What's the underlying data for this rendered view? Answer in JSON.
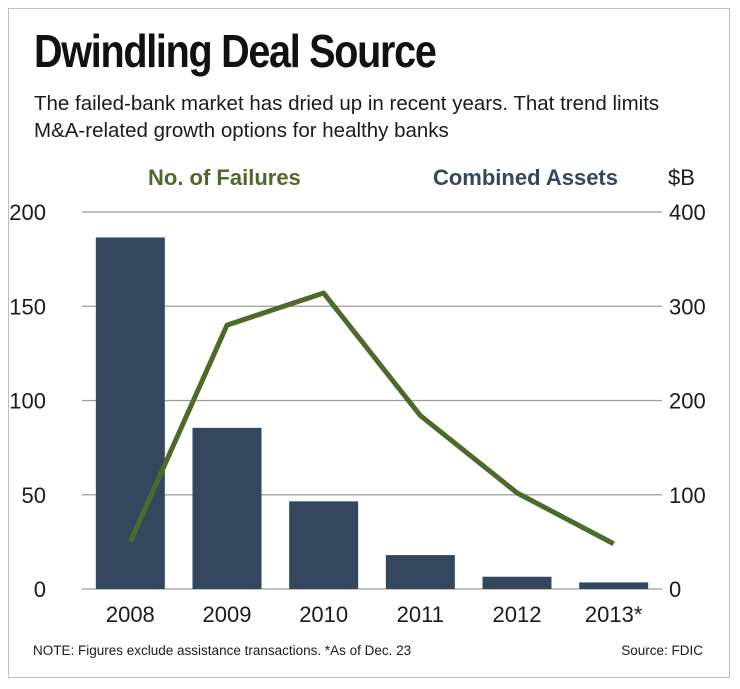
{
  "header": {
    "title": "Dwindling Deal Source",
    "subtitle": "The failed-bank market has dried up in recent years. That trend limits M&A-related growth options for healthy banks"
  },
  "footer": {
    "note": "NOTE: Figures exclude assistance transactions. *As of Dec. 23",
    "source": "Source: FDIC"
  },
  "colors": {
    "bars": "#34475f",
    "line": "#4d6a2a",
    "grid": "#9a9a9a",
    "text": "#1a1a1a"
  },
  "chart_data": {
    "type": "bar",
    "title": "Dwindling Deal Source",
    "categories": [
      "2008",
      "2009",
      "2010",
      "2011",
      "2012",
      "2013*"
    ],
    "series": [
      {
        "name": "Combined Assets",
        "chart": "bar",
        "axis": "right",
        "values": [
          373,
          171,
          93,
          36,
          13,
          7
        ]
      },
      {
        "name": "No. of Failures",
        "chart": "line",
        "axis": "left",
        "values": [
          25,
          140,
          157,
          92,
          51,
          24
        ]
      }
    ],
    "left_axis": {
      "label": "",
      "ticks": [
        "0",
        "50",
        "100",
        "150",
        "200"
      ],
      "lim": [
        0,
        200
      ]
    },
    "right_axis": {
      "label": "$B",
      "ticks": [
        "0",
        "100",
        "200",
        "300",
        "400"
      ],
      "lim": [
        0,
        400
      ]
    },
    "grid": true
  }
}
